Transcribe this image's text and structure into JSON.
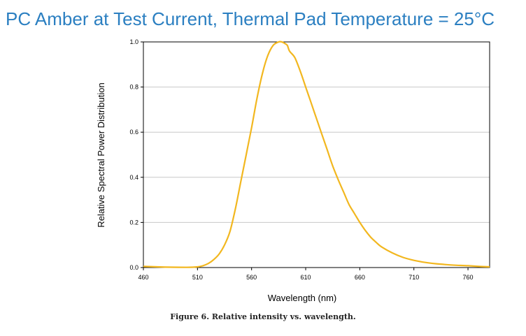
{
  "title": "PC Amber at Test Current, Thermal Pad Temperature = 25°C",
  "caption": "Figure 6.  Relative intensity vs. wavelength.",
  "chart_data": {
    "type": "line",
    "xlabel": "Wavelength (nm)",
    "ylabel": "Relative Spectral Power Distribution",
    "xlim": [
      460,
      780
    ],
    "ylim": [
      0,
      1.0
    ],
    "xticks": [
      "460",
      "510",
      "560",
      "610",
      "660",
      "710",
      "760"
    ],
    "yticks": [
      "0.0",
      "0.2",
      "0.4",
      "0.6",
      "0.8",
      "1.0"
    ],
    "grid": "horizontal",
    "line_color": "#f2b71f",
    "x": [
      460,
      480,
      500,
      510,
      515,
      520,
      525,
      530,
      535,
      540,
      545,
      550,
      555,
      560,
      565,
      570,
      575,
      580,
      585,
      588,
      590,
      593,
      595,
      600,
      605,
      610,
      615,
      620,
      625,
      630,
      635,
      640,
      645,
      650,
      655,
      660,
      665,
      670,
      675,
      680,
      690,
      700,
      710,
      720,
      730,
      740,
      750,
      760,
      770,
      780
    ],
    "y": [
      0.005,
      0.002,
      0.001,
      0.003,
      0.008,
      0.018,
      0.035,
      0.06,
      0.1,
      0.16,
      0.26,
      0.38,
      0.5,
      0.62,
      0.75,
      0.86,
      0.94,
      0.985,
      1.0,
      1.0,
      0.995,
      0.985,
      0.96,
      0.93,
      0.87,
      0.8,
      0.73,
      0.66,
      0.59,
      0.52,
      0.45,
      0.39,
      0.335,
      0.28,
      0.24,
      0.2,
      0.165,
      0.135,
      0.112,
      0.092,
      0.065,
      0.045,
      0.032,
      0.023,
      0.017,
      0.013,
      0.01,
      0.008,
      0.005,
      0.003
    ]
  }
}
